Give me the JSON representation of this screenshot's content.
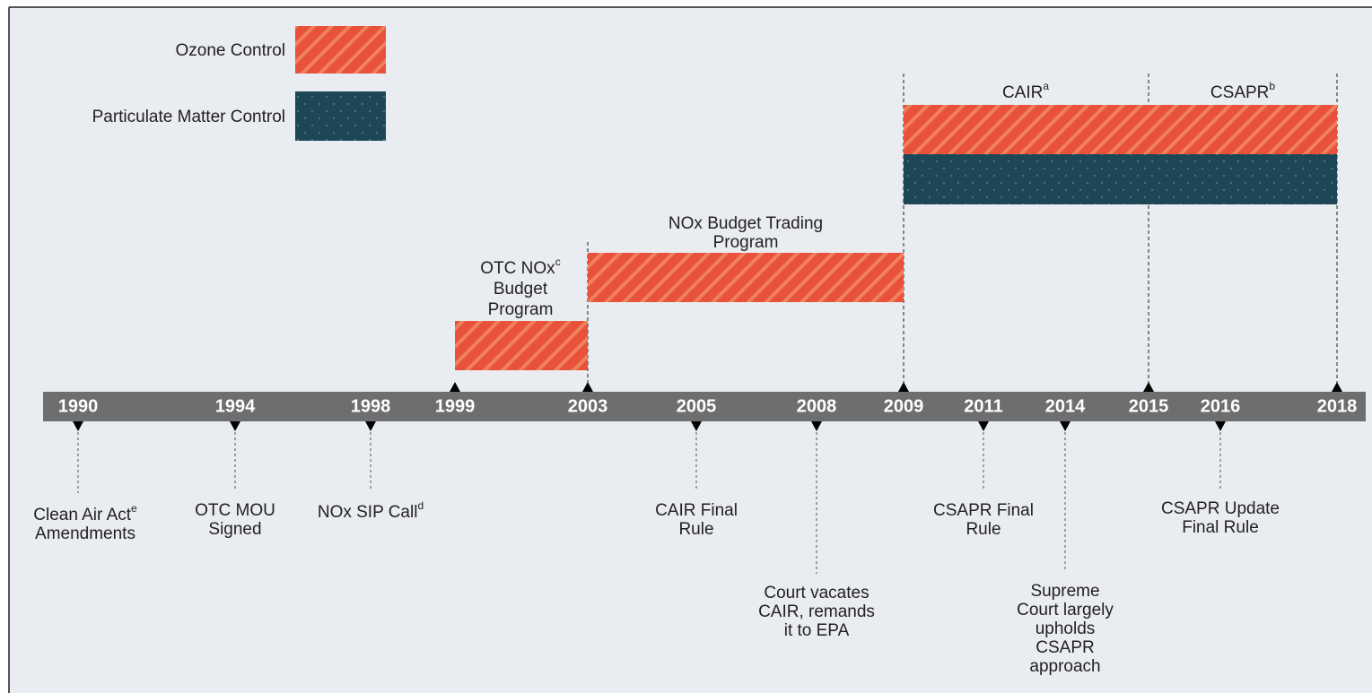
{
  "legend": [
    {
      "label": "Ozone Control"
    },
    {
      "label": "Particulate Matter Control"
    }
  ],
  "years": [
    "1990",
    "1994",
    "1998",
    "1999",
    "2003",
    "2005",
    "2008",
    "2009",
    "2011",
    "2014",
    "2015",
    "2016",
    "2018"
  ],
  "programs": [
    {
      "lines": [
        "OTC NOx",
        "Budget",
        "Program"
      ],
      "sup": "c"
    },
    {
      "lines": [
        "NOx Budget Trading",
        "Program"
      ]
    },
    {
      "lines": [
        "CAIR"
      ],
      "sup": "a"
    },
    {
      "lines": [
        "CSAPR"
      ],
      "sup": "b"
    }
  ],
  "events": [
    {
      "lines": [
        "Clean Air Act",
        "Amendments"
      ],
      "sup": "e"
    },
    {
      "lines": [
        "OTC MOU",
        "Signed"
      ]
    },
    {
      "lines": [
        "NOx SIP Call"
      ],
      "sup": "d"
    },
    {
      "lines": [
        "CAIR Final",
        "Rule"
      ]
    },
    {
      "lines": [
        "Court vacates",
        "CAIR, remands",
        "it to EPA"
      ]
    },
    {
      "lines": [
        "CSAPR Final",
        "Rule"
      ]
    },
    {
      "lines": [
        "Supreme",
        "Court largely",
        "upholds",
        "CSAPR",
        "approach"
      ]
    },
    {
      "lines": [
        "CSAPR Update",
        "Final Rule"
      ]
    }
  ]
}
